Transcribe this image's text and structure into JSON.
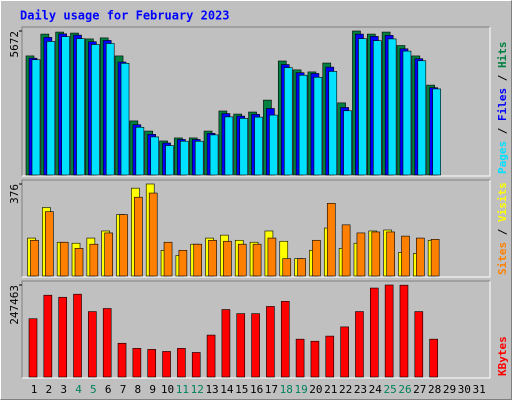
{
  "chart_data": [
    {
      "type": "bar",
      "title": "Daily usage for February 2023",
      "ylim": [
        0,
        5672
      ],
      "yticks": [
        5672
      ],
      "series": [
        {
          "name": "Hits",
          "color": "#008040",
          "values": [
            4690,
            5550,
            5630,
            5590,
            5360,
            5400,
            4690,
            2130,
            1730,
            1340,
            1460,
            1460,
            1730,
            2520,
            2400,
            2480,
            2950,
            4490,
            4140,
            4060,
            4410,
            2840,
            5672,
            5550,
            5630,
            5100,
            4690,
            3540,
            null,
            null,
            null
          ]
        },
        {
          "name": "Files",
          "color": "#0000ff",
          "values": [
            4600,
            5420,
            5560,
            5510,
            5250,
            5300,
            4450,
            1980,
            1600,
            1260,
            1400,
            1400,
            1640,
            2420,
            2320,
            2390,
            2620,
            4350,
            4030,
            4000,
            4250,
            2660,
            5550,
            5460,
            5500,
            4970,
            4580,
            3440,
            null,
            null,
            null
          ]
        },
        {
          "name": "Pages",
          "color": "#00e0ff",
          "values": [
            4540,
            5260,
            5450,
            5370,
            5140,
            5180,
            4400,
            1880,
            1500,
            1160,
            1330,
            1330,
            1580,
            2290,
            2230,
            2280,
            2360,
            4230,
            3930,
            3850,
            4080,
            2530,
            5370,
            5290,
            5360,
            4880,
            4500,
            3390,
            null,
            null,
            null
          ]
        }
      ]
    },
    {
      "type": "bar",
      "ylim": [
        0,
        376
      ],
      "yticks": [
        376
      ],
      "series": [
        {
          "name": "Visits",
          "color": "#ffff00",
          "values": [
            155,
            280,
            138,
            134,
            155,
            184,
            251,
            359,
            376,
            105,
            84,
            130,
            155,
            167,
            146,
            138,
            184,
            142,
            71,
            105,
            196,
            113,
            134,
            184,
            188,
            96,
            92,
            146,
            null,
            null,
            null
          ]
        },
        {
          "name": "Sites",
          "color": "#ff8000",
          "values": [
            146,
            263,
            138,
            113,
            130,
            176,
            251,
            322,
            339,
            138,
            105,
            130,
            146,
            142,
            130,
            130,
            155,
            71,
            71,
            146,
            297,
            209,
            176,
            180,
            180,
            163,
            155,
            150,
            null,
            null,
            null
          ]
        }
      ]
    },
    {
      "type": "bar",
      "ylim": [
        0,
        247463
      ],
      "yticks": [
        247463
      ],
      "categories": [
        "1",
        "2",
        "3",
        "4",
        "5",
        "6",
        "7",
        "8",
        "9",
        "10",
        "11",
        "12",
        "13",
        "14",
        "15",
        "16",
        "17",
        "18",
        "19",
        "20",
        "21",
        "22",
        "23",
        "24",
        "25",
        "26",
        "27",
        "28",
        "29",
        "30",
        "31"
      ],
      "category_colors": [
        "#000000",
        "#000000",
        "#000000",
        "#00805c",
        "#00805c",
        "#000000",
        "#000000",
        "#000000",
        "#000000",
        "#000000",
        "#00805c",
        "#00805c",
        "#000000",
        "#000000",
        "#000000",
        "#000000",
        "#000000",
        "#00805c",
        "#00805c",
        "#000000",
        "#000000",
        "#000000",
        "#000000",
        "#000000",
        "#00805c",
        "#00805c",
        "#000000",
        "#000000",
        "#000000",
        "#000000",
        "#000000"
      ],
      "series": [
        {
          "name": "KBytes",
          "color": "#ff0000",
          "values": [
            156750,
            220000,
            214500,
            222750,
            176000,
            184250,
            90750,
            77000,
            74250,
            68750,
            77000,
            66000,
            112750,
            181500,
            170500,
            170500,
            189750,
            203500,
            101750,
            96250,
            110000,
            134750,
            176000,
            239250,
            247463,
            247000,
            176000,
            101750,
            null,
            null,
            null
          ]
        }
      ]
    }
  ]
}
